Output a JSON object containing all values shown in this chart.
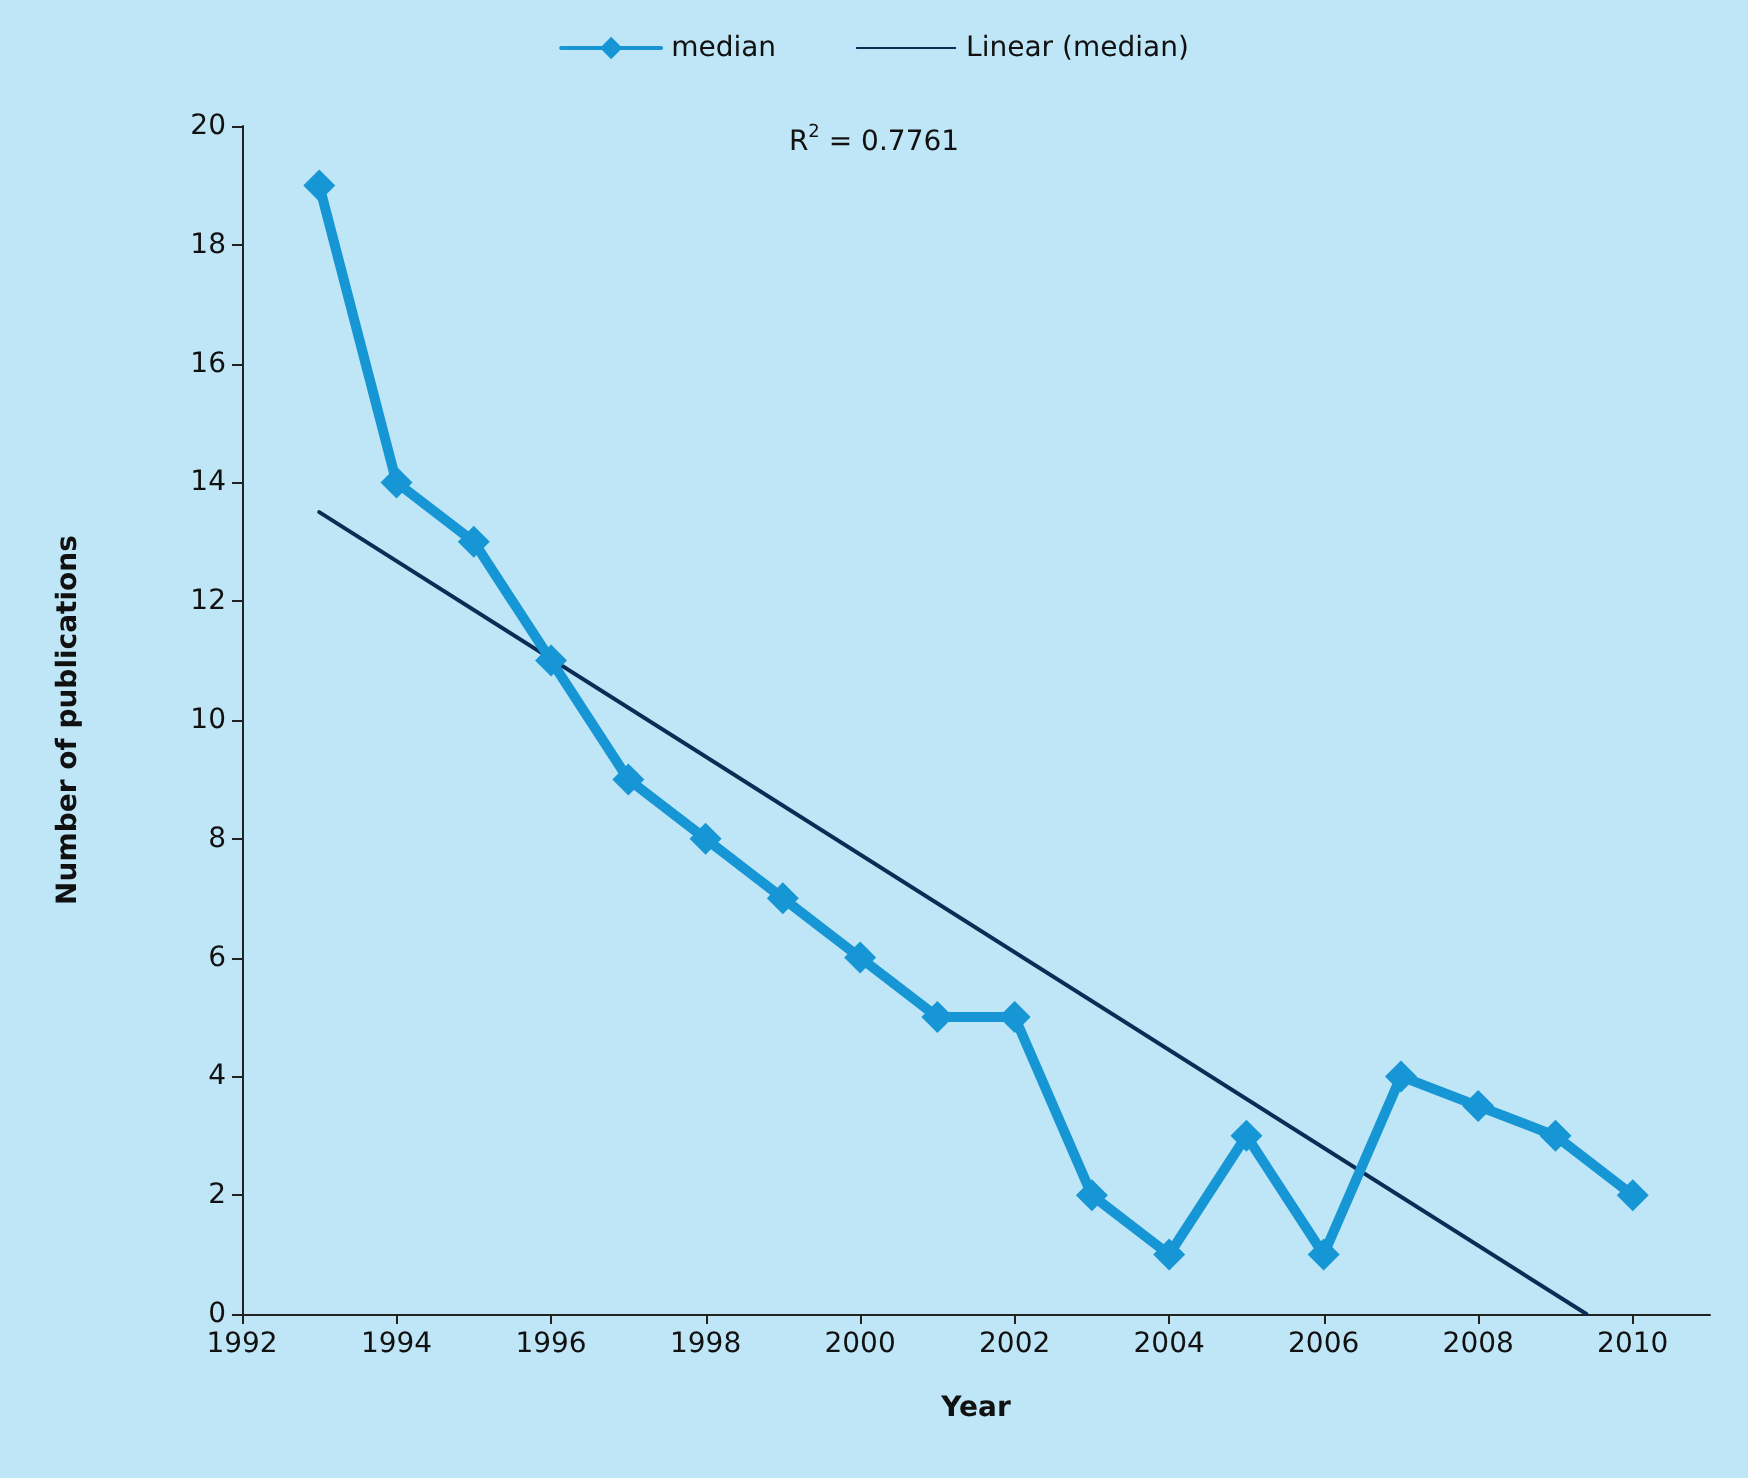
{
  "chart_data": {
    "type": "line",
    "xlabel": "Year",
    "ylabel": "Number of publications",
    "x": [
      1993,
      1994,
      1995,
      1996,
      1997,
      1998,
      1999,
      2000,
      2001,
      2002,
      2003,
      2004,
      2005,
      2006,
      2007,
      2008,
      2009,
      2010
    ],
    "series": [
      {
        "name": "median",
        "color": "#1696d4",
        "marker": "diamond",
        "values": [
          19,
          14,
          13,
          11,
          9,
          8,
          7,
          6,
          5,
          5,
          2,
          1,
          3,
          1,
          4,
          3.5,
          3,
          2
        ]
      },
      {
        "name": "Linear (median)",
        "color": "#0b2c55",
        "marker": "none",
        "x": [
          1993,
          2009.4
        ],
        "values": [
          13.5,
          0
        ]
      }
    ],
    "annotations": [
      "R$^{2}$ = 0.7761"
    ],
    "xlim": [
      1992,
      2011
    ],
    "xticks": [
      1992,
      1994,
      1996,
      1998,
      2000,
      2002,
      2004,
      2006,
      2008,
      2010
    ],
    "ylim": [
      0,
      20
    ],
    "yticks": [
      0,
      2,
      4,
      6,
      8,
      10,
      12,
      14,
      16,
      18,
      20
    ],
    "grid": false,
    "legend": "top"
  }
}
